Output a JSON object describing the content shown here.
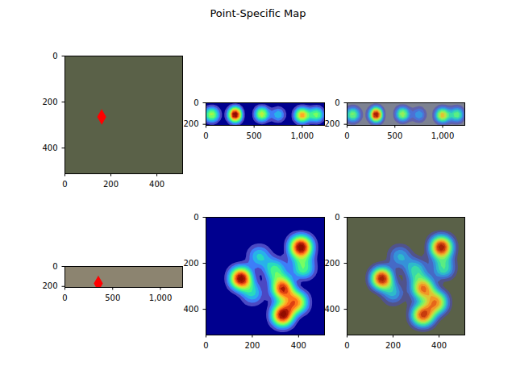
{
  "title": "Point-Specific Map",
  "chart_data": [
    {
      "type": "image",
      "color": "#5a6148",
      "xlim": [
        0,
        512
      ],
      "ylim": [
        512,
        0
      ],
      "xticks": [
        0,
        200,
        400
      ],
      "yticks": [
        0,
        200,
        400
      ],
      "points": {
        "x": [
          160
        ],
        "y": [
          265
        ],
        "color": "red"
      },
      "marker": "diamond"
    },
    {
      "type": "heatmap",
      "color": "#00008f",
      "xlim": [
        0,
        1232
      ],
      "ylim": [
        210,
        0
      ],
      "xticks": [
        0,
        500,
        1000
      ],
      "yticks": [
        0,
        200
      ],
      "hotspots": {
        "x": [
          60,
          300,
          580,
          750,
          1000,
          1150
        ],
        "y": [
          110,
          110,
          105,
          110,
          115,
          110
        ],
        "weight": [
          0.6,
          1,
          0.6,
          0.3,
          0.8,
          0.5
        ]
      }
    },
    {
      "type": "image",
      "color": "#7d8291",
      "xlim": [
        0,
        1232
      ],
      "ylim": [
        210,
        0
      ],
      "xticks": [
        0,
        500,
        1000
      ],
      "yticks": [
        0,
        200
      ],
      "overlay": {
        "x": [
          60,
          300,
          580,
          750,
          1000,
          1150
        ],
        "y": [
          110,
          110,
          105,
          110,
          115,
          110
        ],
        "weight": [
          0.6,
          1,
          0.6,
          0.3,
          0.8,
          0.5
        ]
      }
    },
    {
      "type": "image",
      "color": "#8c8470",
      "xlim": [
        0,
        1232
      ],
      "ylim": [
        210,
        0
      ],
      "xticks": [
        0,
        500,
        1000
      ],
      "yticks": [
        0,
        200
      ],
      "points": {
        "x": [
          350
        ],
        "y": [
          170
        ],
        "color": "red"
      },
      "marker": "diamond"
    },
    {
      "type": "heatmap",
      "color": "#00008f",
      "xlim": [
        0,
        512
      ],
      "ylim": [
        512,
        0
      ],
      "xticks": [
        0,
        200,
        400
      ],
      "yticks": [
        0,
        200,
        400
      ],
      "hotspots": {
        "x": [
          150,
          330,
          410,
          330,
          300,
          420,
          230,
          390,
          200
        ],
        "y": [
          265,
          310,
          130,
          425,
          230,
          220,
          170,
          370,
          330
        ],
        "weight": [
          0.9,
          0.8,
          1,
          0.9,
          0.4,
          0.4,
          0.3,
          0.7,
          0.3
        ]
      }
    },
    {
      "type": "image",
      "color": "#5a6148",
      "xlim": [
        0,
        512
      ],
      "ylim": [
        512,
        0
      ],
      "xticks": [
        0,
        200,
        400
      ],
      "yticks": [
        0,
        200,
        400
      ],
      "overlay": {
        "x": [
          150,
          330,
          410,
          330,
          300,
          420,
          230,
          390,
          200
        ],
        "y": [
          265,
          310,
          130,
          425,
          230,
          220,
          170,
          370,
          330
        ],
        "weight": [
          0.9,
          0.8,
          1,
          0.9,
          0.4,
          0.4,
          0.3,
          0.7,
          0.3
        ]
      }
    }
  ]
}
